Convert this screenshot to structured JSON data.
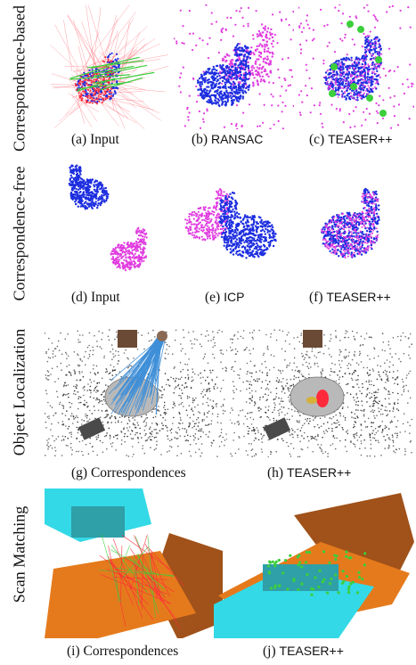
{
  "row_labels": {
    "row1": "Correspondence-based",
    "row2": "Correspondence-free",
    "row3": "Object Localization",
    "row4": "Scan Matching"
  },
  "captions": {
    "a": {
      "tag": "(a)",
      "text": "Input",
      "style": "serif"
    },
    "b": {
      "tag": "(b)",
      "text": "RANSAC",
      "style": "sans"
    },
    "c": {
      "tag": "(c)",
      "text": "TEASER++",
      "style": "sans"
    },
    "d": {
      "tag": "(d)",
      "text": "Input",
      "style": "serif"
    },
    "e": {
      "tag": "(e)",
      "text": "ICP",
      "style": "sans"
    },
    "f": {
      "tag": "(f)",
      "text": "TEASER++",
      "style": "sans"
    },
    "g": {
      "tag": "(g)",
      "text": "Correspondences",
      "style": "serif"
    },
    "h": {
      "tag": "(h)",
      "text": "TEASER++",
      "style": "sans"
    },
    "i": {
      "tag": "(i)",
      "text": "Correspondences",
      "style": "serif"
    },
    "j": {
      "tag": "(j)",
      "text": "TEASER++",
      "style": "sans"
    }
  },
  "colors": {
    "bunny_blue": "#1d2ee0",
    "bunny_magenta": "#e03ce0",
    "inlier_green": "#3ccf3c",
    "outlier_red": "#ff2a3a",
    "scene_gray": "#5a5a5a",
    "corr_blue": "#3f8fd8",
    "scan_cyan": "#33d9e6",
    "scan_orange": "#e57a1c"
  }
}
